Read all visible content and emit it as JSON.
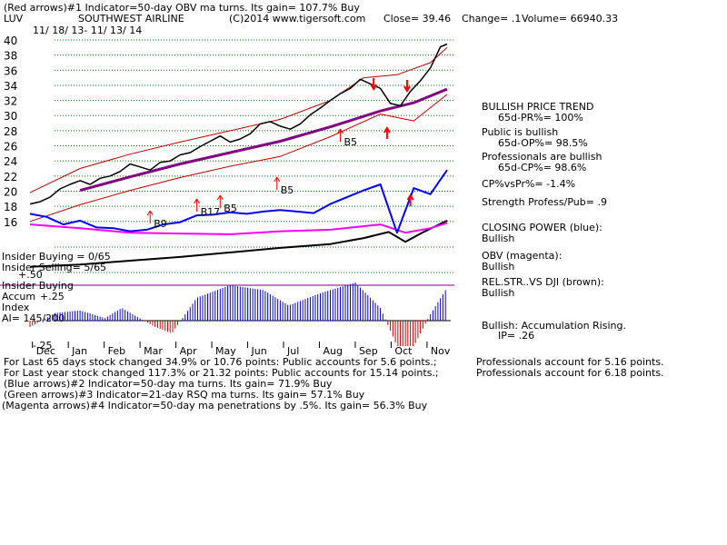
{
  "header": {
    "line1": "(Red arrows)#1 Indicator=50-day OBV ma turns. Its gain= 107.7% Buy",
    "ticker": "LUV",
    "company": "SOUTHWEST AIRLINE",
    "copyright": "(C)2014 www.tigersoft.com",
    "close_label": "Close= 39.46",
    "change_label": "Change= .1",
    "volume_label": "Volume= 66940.33",
    "date_range": "11/ 18/ 13- 11/ 13/ 14"
  },
  "right_panel": {
    "trend_title": "BULLISH PRICE TREND",
    "pr": "65d-PR%= 100%",
    "public_title": "Public is bullish",
    "op": "65d-OP%= 98.5%",
    "prof_title": "Professionals are bullish",
    "cp": "65d-CP%= 98.6%",
    "cpvspr": "CP%vsPr%= -1.4%",
    "strength": "Strength Profess/Pub= .9",
    "closing_power_title": "CLOSING POWER (blue):",
    "closing_power_value": "Bullish",
    "obv_title": "OBV (magenta):",
    "obv_value": "Bullish",
    "relstr_title": "REL.STR..VS DJI (brown):",
    "relstr_value": "Bullish",
    "accum_title": "Bullish: Accumulation Rising.",
    "ip": "IP= .26"
  },
  "left_labels": {
    "insider_buying_ratio": "Insider Buying = 0/65",
    "insider_selling_ratio": "Insider Selling= 5/65",
    "plus50": "+.50",
    "insider_buying": "Insider Buying",
    "accum": "Accum",
    "plus25": "+.25",
    "index": "Index",
    "ai": "AI= 145/200",
    "minus25": "-.25"
  },
  "chart_data": {
    "type": "line",
    "title": "SOUTHWEST AIRLINE",
    "yticks": [
      16,
      18,
      20,
      22,
      24,
      26,
      28,
      30,
      32,
      34,
      36,
      38,
      40
    ],
    "months": [
      "Dec",
      "Jan",
      "Feb",
      "Mar",
      "Apr",
      "May",
      "Jun",
      "Jul",
      "Aug",
      "Sep",
      "Oct",
      "Nov"
    ],
    "price_close": [
      [
        0,
        18.3
      ],
      [
        6,
        18.6
      ],
      [
        12,
        19.2
      ],
      [
        18,
        20.3
      ],
      [
        24,
        20.9
      ],
      [
        30,
        21.4
      ],
      [
        36,
        20.9
      ],
      [
        42,
        21.7
      ],
      [
        48,
        22.0
      ],
      [
        54,
        22.6
      ],
      [
        60,
        23.6
      ],
      [
        66,
        23.2
      ],
      [
        72,
        22.8
      ],
      [
        78,
        23.8
      ],
      [
        84,
        24.0
      ],
      [
        90,
        24.8
      ],
      [
        96,
        25.1
      ],
      [
        102,
        25.9
      ],
      [
        108,
        26.6
      ],
      [
        114,
        27.3
      ],
      [
        120,
        26.5
      ],
      [
        126,
        26.9
      ],
      [
        132,
        27.6
      ],
      [
        138,
        28.9
      ],
      [
        144,
        29.2
      ],
      [
        150,
        28.6
      ],
      [
        156,
        28.2
      ],
      [
        162,
        28.9
      ],
      [
        168,
        30.1
      ],
      [
        174,
        31.0
      ],
      [
        180,
        32.0
      ],
      [
        186,
        32.9
      ],
      [
        192,
        33.6
      ],
      [
        198,
        34.8
      ],
      [
        204,
        34.2
      ],
      [
        210,
        33.6
      ],
      [
        216,
        31.6
      ],
      [
        222,
        31.3
      ],
      [
        228,
        33.2
      ],
      [
        234,
        34.6
      ],
      [
        240,
        36.3
      ],
      [
        246,
        39.1
      ],
      [
        250,
        39.46
      ]
    ],
    "ma50": [
      [
        30,
        20.1
      ],
      [
        60,
        21.9
      ],
      [
        90,
        23.6
      ],
      [
        120,
        25.1
      ],
      [
        150,
        26.6
      ],
      [
        180,
        28.5
      ],
      [
        210,
        30.6
      ],
      [
        230,
        31.7
      ],
      [
        250,
        33.5
      ]
    ],
    "band_upper": [
      [
        0,
        19.8
      ],
      [
        30,
        23.0
      ],
      [
        60,
        24.9
      ],
      [
        90,
        26.5
      ],
      [
        120,
        28.0
      ],
      [
        150,
        29.5
      ],
      [
        180,
        32.0
      ],
      [
        200,
        35.0
      ],
      [
        220,
        35.4
      ],
      [
        240,
        37.0
      ],
      [
        250,
        39.0
      ]
    ],
    "band_lower": [
      [
        0,
        16.0
      ],
      [
        30,
        18.2
      ],
      [
        60,
        20.1
      ],
      [
        90,
        21.8
      ],
      [
        120,
        23.3
      ],
      [
        150,
        24.6
      ],
      [
        180,
        27.2
      ],
      [
        210,
        30.2
      ],
      [
        230,
        29.3
      ],
      [
        250,
        32.8
      ]
    ],
    "closing_power": [
      [
        0,
        17.0
      ],
      [
        10,
        16.6
      ],
      [
        20,
        15.6
      ],
      [
        30,
        16.1
      ],
      [
        40,
        15.2
      ],
      [
        50,
        15.1
      ],
      [
        60,
        14.7
      ],
      [
        70,
        14.9
      ],
      [
        80,
        15.6
      ],
      [
        90,
        15.9
      ],
      [
        100,
        16.8
      ],
      [
        110,
        16.9
      ],
      [
        120,
        17.2
      ],
      [
        130,
        17.0
      ],
      [
        140,
        17.3
      ],
      [
        150,
        17.5
      ],
      [
        160,
        17.3
      ],
      [
        170,
        17.1
      ],
      [
        180,
        18.3
      ],
      [
        190,
        19.2
      ],
      [
        200,
        20.1
      ],
      [
        210,
        20.9
      ],
      [
        220,
        14.5
      ],
      [
        230,
        20.4
      ],
      [
        240,
        19.6
      ],
      [
        250,
        22.8
      ]
    ],
    "obv": [
      [
        0,
        15.6
      ],
      [
        30,
        15.1
      ],
      [
        60,
        14.5
      ],
      [
        90,
        14.4
      ],
      [
        120,
        14.3
      ],
      [
        150,
        14.7
      ],
      [
        180,
        14.9
      ],
      [
        210,
        15.6
      ],
      [
        225,
        14.5
      ],
      [
        240,
        15.1
      ],
      [
        250,
        15.8
      ]
    ],
    "rel_str_dji": [
      [
        0,
        10.0
      ],
      [
        30,
        10.3
      ],
      [
        60,
        10.8
      ],
      [
        90,
        11.3
      ],
      [
        120,
        11.9
      ],
      [
        150,
        12.5
      ],
      [
        180,
        13.0
      ],
      [
        200,
        13.8
      ],
      [
        215,
        14.6
      ],
      [
        225,
        13.3
      ],
      [
        235,
        14.5
      ],
      [
        250,
        16.1
      ]
    ],
    "accum_index": [
      [
        0,
        -0.05
      ],
      [
        15,
        0.06
      ],
      [
        30,
        0.08
      ],
      [
        45,
        0.02
      ],
      [
        55,
        0.1
      ],
      [
        75,
        -0.05
      ],
      [
        85,
        -0.1
      ],
      [
        100,
        0.18
      ],
      [
        120,
        0.28
      ],
      [
        140,
        0.24
      ],
      [
        155,
        0.12
      ],
      [
        175,
        0.22
      ],
      [
        195,
        0.3
      ],
      [
        210,
        0.1
      ],
      [
        220,
        -0.2
      ],
      [
        230,
        -0.2
      ],
      [
        240,
        0.05
      ],
      [
        250,
        0.26
      ]
    ],
    "signals": [
      {
        "label": "B9",
        "x": 72
      },
      {
        "label": "B17",
        "x": 100
      },
      {
        "label": "B5",
        "x": 114
      },
      {
        "label": "B5",
        "x": 148
      },
      {
        "label": "B5",
        "x": 186
      }
    ]
  },
  "footer": {
    "line1a": "For Last 65 days stock changed  34.9% or  10.76 points:  Public accounts for  5.6 points.;",
    "line1b": "Professionals account for  5.16 points.",
    "line2a": "For Last year stock changed  117.3% or  21.32 points:  Public accounts for  15.14 points.;",
    "line2b": "Professionals account for  6.18 points.",
    "line3": "(Blue arrows)#2 Indicator=50-day ma turns. Its gain= 71.9% Buy",
    "line4": "(Green arrows)#3 Indicator=21-day RSQ ma turns. Its gain= 57.1% Buy",
    "line5": "(Magenta arrows)#4 Indicator=50-day ma penetrations by .5%. Its gain= 56.3% Buy"
  },
  "colors": {
    "price": "#000000",
    "ma50": "#800080",
    "bands": "#c00000",
    "closing_power": "#0000ff",
    "obv": "#ff00ff",
    "rel_str": "#000000",
    "accum_pos": "#0000cc",
    "accum_neg": "#cc0000",
    "arrow": "#ff0000",
    "grid": "#008000"
  }
}
